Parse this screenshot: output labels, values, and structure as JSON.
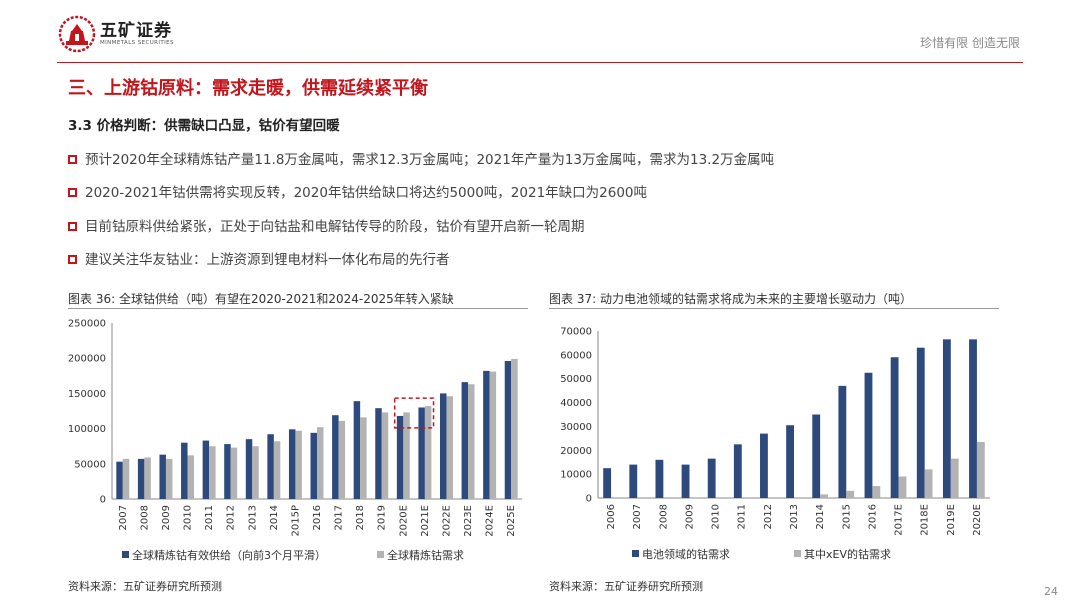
{
  "header": {
    "brand_cn": "五矿证券",
    "brand_en": "MINMETALS SECURITIES",
    "slogan": "珍惜有限  创造无限"
  },
  "section_title": "三、上游钴原料：需求走暖，供需延续紧平衡",
  "subsection_title": "3.3 价格判断：供需缺口凸显，钴价有望回暖",
  "bullets": [
    "预计2020年全球精炼钴产量11.8万金属吨，需求12.3万金属吨；2021年产量为13万金属吨，需求为13.2万金属吨",
    "2020-2021年钴供需将实现反转，2020年钴供给缺口将达约5000吨，2021年缺口为2600吨",
    "目前钴原料供给紧张，正处于向钴盐和电解钴传导的阶段，钴价有望开启新一轮周期",
    "建议关注华友钴业：上游资源到锂电材料一体化布局的先行者"
  ],
  "figure_left": {
    "title": "图表 36:  全球钴供给（吨）有望在2020-2021和2024-2025年转入紧缺",
    "source": "资料来源：五矿证券研究所预测"
  },
  "figure_right": {
    "title": "图表 37:  动力电池领域的钴需求将成为未来的主要增长驱动力（吨）",
    "source": "资料来源：五矿证券研究所预测"
  },
  "page_number": "24",
  "colors": {
    "accent": "#c3161c",
    "series_a": "#2e4a7d",
    "series_b": "#b3b3b3"
  },
  "chart_data": [
    {
      "type": "bar",
      "categories": [
        "2007",
        "2008",
        "2009",
        "2010",
        "2011",
        "2012",
        "2013",
        "2014",
        "2015P",
        "2016",
        "2017",
        "2018",
        "2019",
        "2020E",
        "2021E",
        "2022E",
        "2023E",
        "2024E",
        "2025E"
      ],
      "series": [
        {
          "name": "全球精炼钴有效供给（向前3个月平滑）",
          "values": [
            53000,
            57000,
            63000,
            80000,
            83000,
            78000,
            85000,
            92000,
            99000,
            94000,
            119000,
            139000,
            129000,
            118000,
            130000,
            150000,
            166000,
            182000,
            196000
          ]
        },
        {
          "name": "全球精炼钴需求",
          "values": [
            57000,
            59000,
            57000,
            62000,
            75000,
            73000,
            75000,
            82000,
            97000,
            102000,
            111000,
            116000,
            123000,
            123000,
            132000,
            146000,
            163000,
            181000,
            199000
          ]
        }
      ],
      "ylim": [
        0,
        250000
      ],
      "yticks": [
        "0",
        "50000",
        "100000",
        "150000",
        "200000",
        "250000"
      ],
      "highlight": [
        "2020E",
        "2021E"
      ],
      "legend": "bottom"
    },
    {
      "type": "bar",
      "categories": [
        "2006",
        "2007",
        "2008",
        "2009",
        "2010",
        "2011",
        "2012",
        "2013",
        "2014",
        "2015",
        "2016",
        "2017E",
        "2018E",
        "2019E",
        "2020E"
      ],
      "series": [
        {
          "name": "电池领域的钴需求",
          "values": [
            12500,
            14000,
            16000,
            14000,
            16500,
            22500,
            27000,
            30500,
            35000,
            47000,
            52500,
            59000,
            63000,
            66500,
            66500
          ]
        },
        {
          "name": "其中xEV的钴需求",
          "values": [
            0,
            0,
            0,
            0,
            0,
            0,
            0,
            0,
            1500,
            3000,
            5000,
            9000,
            12000,
            16500,
            23500
          ]
        }
      ],
      "ylim": [
        0,
        70000
      ],
      "yticks": [
        "0",
        "10000",
        "20000",
        "30000",
        "40000",
        "50000",
        "60000",
        "70000"
      ],
      "legend": "bottom"
    }
  ]
}
